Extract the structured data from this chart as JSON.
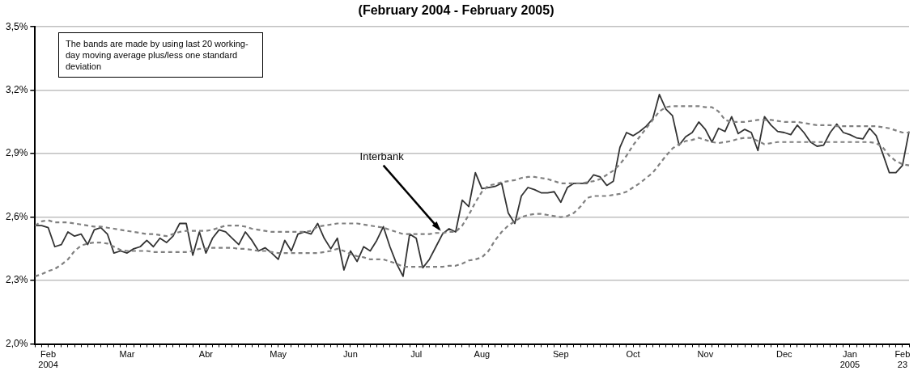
{
  "chart_data": {
    "type": "line",
    "title": "(February 2004 - February 2005)",
    "categories": [
      null,
      null,
      "Feb\n2004",
      null,
      null,
      null,
      null,
      null,
      null,
      null,
      null,
      null,
      null,
      null,
      "Mar",
      null,
      null,
      null,
      null,
      null,
      null,
      null,
      null,
      null,
      null,
      null,
      "Abr",
      null,
      null,
      null,
      null,
      null,
      null,
      null,
      null,
      null,
      null,
      "May",
      null,
      null,
      null,
      null,
      null,
      null,
      null,
      null,
      null,
      null,
      "Jun",
      null,
      null,
      null,
      null,
      null,
      null,
      null,
      null,
      null,
      "Jul",
      null,
      null,
      null,
      null,
      null,
      null,
      null,
      null,
      null,
      "Aug",
      null,
      null,
      null,
      null,
      null,
      null,
      null,
      null,
      null,
      null,
      null,
      "Sep",
      null,
      null,
      null,
      null,
      null,
      null,
      null,
      null,
      null,
      null,
      "Oct",
      null,
      null,
      null,
      null,
      null,
      null,
      null,
      null,
      null,
      null,
      "Nov",
      null,
      null,
      null,
      null,
      null,
      null,
      null,
      null,
      null,
      null,
      null,
      "Dec",
      null,
      null,
      null,
      null,
      null,
      null,
      null,
      null,
      null,
      "Jan\n2005",
      null,
      null,
      null,
      null,
      null,
      null,
      null,
      "Feb\n23",
      null
    ],
    "series": [
      {
        "name": "Interbank",
        "color": "#333333",
        "line_style": "solid",
        "values": [
          2.56,
          2.56,
          2.55,
          2.46,
          2.47,
          2.53,
          2.51,
          2.52,
          2.47,
          2.54,
          2.55,
          2.52,
          2.43,
          2.44,
          2.43,
          2.45,
          2.46,
          2.49,
          2.46,
          2.5,
          2.48,
          2.51,
          2.57,
          2.57,
          2.42,
          2.53,
          2.43,
          2.5,
          2.54,
          2.53,
          2.5,
          2.47,
          2.53,
          2.49,
          2.44,
          2.455,
          2.43,
          2.4,
          2.49,
          2.44,
          2.52,
          2.53,
          2.52,
          2.57,
          2.5,
          2.45,
          2.5,
          2.35,
          2.44,
          2.39,
          2.46,
          2.44,
          2.49,
          2.555,
          2.46,
          2.38,
          2.32,
          2.52,
          2.5,
          2.36,
          2.4,
          2.46,
          2.52,
          2.545,
          2.53,
          2.68,
          2.65,
          2.81,
          2.735,
          2.74,
          2.745,
          2.76,
          2.62,
          2.57,
          2.7,
          2.74,
          2.73,
          2.715,
          2.715,
          2.72,
          2.67,
          2.74,
          2.76,
          2.76,
          2.76,
          2.8,
          2.79,
          2.75,
          2.77,
          2.93,
          3.0,
          2.985,
          3.005,
          3.03,
          3.065,
          3.18,
          3.11,
          3.08,
          2.94,
          2.98,
          3.0,
          3.05,
          3.015,
          2.955,
          3.02,
          3.005,
          3.075,
          2.995,
          3.015,
          3.0,
          2.915,
          3.075,
          3.035,
          3.005,
          3.0,
          2.99,
          3.035,
          3.0,
          2.955,
          2.935,
          2.94,
          3.0,
          3.04,
          3.0,
          2.99,
          2.975,
          2.97,
          3.02,
          2.985,
          2.9,
          2.81,
          2.81,
          2.845,
          3.005
        ]
      },
      {
        "color": "#808080",
        "line_style": "dashed",
        "values": [
          2.56,
          2.58,
          2.585,
          2.575,
          2.575,
          2.575,
          2.57,
          2.565,
          2.56,
          2.555,
          2.555,
          2.55,
          2.545,
          2.54,
          2.535,
          2.53,
          2.525,
          2.52,
          2.52,
          2.515,
          2.51,
          2.52,
          2.53,
          2.535,
          2.535,
          2.535,
          2.535,
          2.54,
          2.55,
          2.56,
          2.56,
          2.56,
          2.555,
          2.545,
          2.54,
          2.535,
          2.53,
          2.53,
          2.53,
          2.53,
          2.53,
          2.53,
          2.535,
          2.555,
          2.56,
          2.565,
          2.57,
          2.57,
          2.57,
          2.57,
          2.565,
          2.56,
          2.555,
          2.55,
          2.54,
          2.53,
          2.52,
          2.52,
          2.52,
          2.52,
          2.52,
          2.525,
          2.525,
          2.53,
          2.53,
          2.56,
          2.61,
          2.67,
          2.72,
          2.75,
          2.755,
          2.765,
          2.77,
          2.775,
          2.785,
          2.79,
          2.79,
          2.785,
          2.78,
          2.77,
          2.76,
          2.76,
          2.76,
          2.76,
          2.765,
          2.77,
          2.78,
          2.8,
          2.82,
          2.85,
          2.89,
          2.94,
          2.98,
          3.02,
          3.06,
          3.1,
          3.12,
          3.125,
          3.125,
          3.125,
          3.125,
          3.125,
          3.12,
          3.12,
          3.1,
          3.06,
          3.05,
          3.05,
          3.05,
          3.055,
          3.06,
          3.06,
          3.06,
          3.055,
          3.05,
          3.05,
          3.05,
          3.045,
          3.04,
          3.035,
          3.035,
          3.035,
          3.03,
          3.03,
          3.03,
          3.03,
          3.03,
          3.03,
          3.03,
          3.025,
          3.02,
          3.01,
          3.0,
          3.0
        ]
      },
      {
        "color": "#808080",
        "line_style": "dashed",
        "values": [
          2.32,
          2.33,
          2.345,
          2.355,
          2.375,
          2.4,
          2.44,
          2.465,
          2.475,
          2.48,
          2.48,
          2.475,
          2.46,
          2.445,
          2.44,
          2.44,
          2.44,
          2.44,
          2.435,
          2.435,
          2.435,
          2.435,
          2.435,
          2.435,
          2.44,
          2.45,
          2.45,
          2.455,
          2.455,
          2.455,
          2.455,
          2.45,
          2.45,
          2.445,
          2.44,
          2.44,
          2.435,
          2.43,
          2.43,
          2.43,
          2.43,
          2.43,
          2.43,
          2.43,
          2.435,
          2.44,
          2.45,
          2.44,
          2.425,
          2.415,
          2.41,
          2.4,
          2.4,
          2.4,
          2.39,
          2.38,
          2.365,
          2.365,
          2.365,
          2.365,
          2.365,
          2.365,
          2.365,
          2.37,
          2.37,
          2.38,
          2.395,
          2.4,
          2.41,
          2.44,
          2.49,
          2.53,
          2.56,
          2.58,
          2.6,
          2.61,
          2.615,
          2.615,
          2.61,
          2.605,
          2.6,
          2.605,
          2.62,
          2.65,
          2.69,
          2.7,
          2.7,
          2.7,
          2.705,
          2.71,
          2.72,
          2.74,
          2.76,
          2.785,
          2.81,
          2.85,
          2.89,
          2.925,
          2.945,
          2.96,
          2.965,
          2.975,
          2.965,
          2.955,
          2.95,
          2.955,
          2.96,
          2.97,
          2.975,
          2.975,
          2.96,
          2.945,
          2.95,
          2.955,
          2.955,
          2.955,
          2.955,
          2.955,
          2.955,
          2.955,
          2.955,
          2.955,
          2.955,
          2.955,
          2.955,
          2.955,
          2.955,
          2.955,
          2.95,
          2.93,
          2.89,
          2.865,
          2.85,
          2.845
        ]
      }
    ],
    "ylim": [
      2.0,
      3.5
    ],
    "yticks": [
      {
        "value": 2.0,
        "label": "2,0%"
      },
      {
        "value": 2.3,
        "label": "2,3%"
      },
      {
        "value": 2.6,
        "label": "2,6%"
      },
      {
        "value": 2.9,
        "label": "2,9%"
      },
      {
        "value": 3.2,
        "label": "3,2%"
      },
      {
        "value": 3.5,
        "label": "3,5%"
      }
    ],
    "grid": "y",
    "legend": false,
    "marker": "none",
    "annotations": [
      "The bands are made by using last 20 working-day moving average plus/less one standard deviation"
    ]
  }
}
